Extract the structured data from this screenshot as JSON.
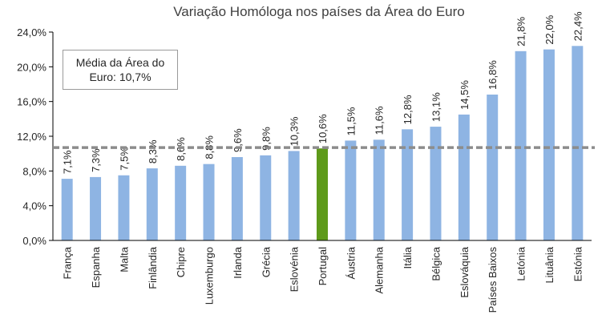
{
  "chart_data": {
    "type": "bar",
    "title": "Variação Homóloga nos países da Área do Euro",
    "categories": [
      "França",
      "Espanha",
      "Malta",
      "Finlândia",
      "Chipre",
      "Luxemburgo",
      "Irlanda",
      "Grécia",
      "Eslovénia",
      "Portugal",
      "Áustria",
      "Alemanha",
      "Itália",
      "Bélgica",
      "Eslováquia",
      "Países Baixos",
      "Letónia",
      "Lituânia",
      "Estónia"
    ],
    "values": [
      7.1,
      7.3,
      7.5,
      8.3,
      8.6,
      8.8,
      9.6,
      9.8,
      10.3,
      10.6,
      11.5,
      11.6,
      12.8,
      13.1,
      14.5,
      16.8,
      21.8,
      22.0,
      22.4
    ],
    "data_labels": [
      "7,1%",
      "7,3%",
      "7,5%",
      "8,3%",
      "8,6%",
      "8,8%",
      "9,6%",
      "9,8%",
      "10,3%",
      "10,6%",
      "11,5%",
      "11,6%",
      "12,8%",
      "13,1%",
      "14,5%",
      "16,8%",
      "21,8%",
      "22,0%",
      "22,4%"
    ],
    "highlight_category": "Portugal",
    "ylim": [
      0,
      24
    ],
    "yticks": [
      0,
      4,
      8,
      12,
      16,
      20,
      24
    ],
    "ytick_labels": [
      "0,0%",
      "4,0%",
      "8,0%",
      "12,0%",
      "16,0%",
      "20,0%",
      "24,0%"
    ],
    "reference_line": {
      "value": 10.7,
      "style": "dashed"
    },
    "annotation": "Média da Área do Euro: 10,7%",
    "grid": false,
    "legend": "none",
    "colors": {
      "bar": "#8EB4E3",
      "highlight": "#5E9A1A",
      "reference_line": "#8C8C8C",
      "axis": "#000000"
    }
  }
}
